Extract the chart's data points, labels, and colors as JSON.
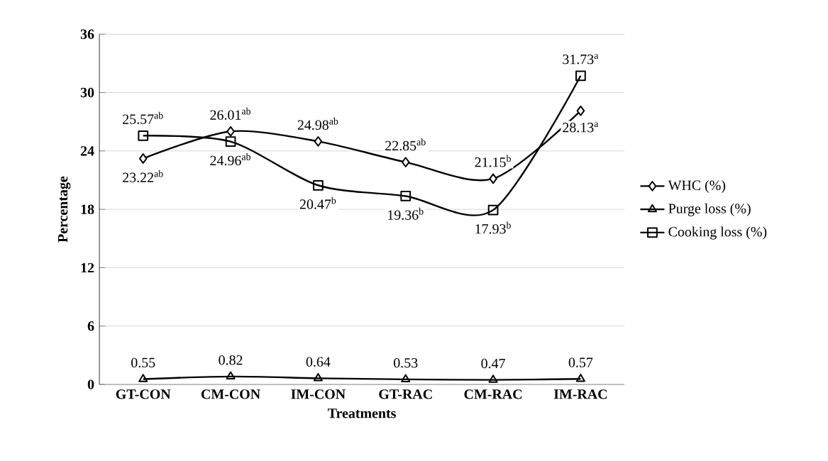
{
  "chart_data": {
    "type": "line",
    "xlabel": "Treatments",
    "ylabel": "Percentage",
    "categories": [
      "GT-CON",
      "CM-CON",
      "IM-CON",
      "GT-RAC",
      "CM-RAC",
      "IM-RAC"
    ],
    "series": [
      {
        "name": "WHC (%)",
        "color": "#000000",
        "marker": "diamond",
        "values": [
          23.22,
          26.01,
          24.98,
          22.85,
          21.15,
          28.13
        ],
        "value_labels": [
          "23.22$^{ab}$",
          "26.01$^{ab}$",
          "24.98$^{ab}$",
          "22.85$^{ab}$",
          "21.15$^{b}$",
          "28.13$^{a}$"
        ]
      },
      {
        "name": "Purge loss (%)",
        "color": "#000000",
        "marker": "triangle",
        "values": [
          0.55,
          0.82,
          0.64,
          0.53,
          0.47,
          0.57
        ],
        "value_labels": [
          "0.55",
          "0.82",
          "0.64",
          "0.53",
          "0.47",
          "0.57"
        ]
      },
      {
        "name": "Cooking loss (%)",
        "color": "#000000",
        "marker": "square",
        "values": [
          25.57,
          24.96,
          20.47,
          19.36,
          17.93,
          31.73
        ],
        "value_labels": [
          "25.57$^{ab}$",
          "24.96$^{ab}$",
          "20.47$^{b}$",
          "19.36$^{b}$",
          "17.93$^{b}$",
          "31.73$^{a}$"
        ]
      }
    ],
    "ylim": [
      0,
      36
    ],
    "yticks": [
      0,
      6,
      12,
      18,
      24,
      30,
      36
    ],
    "grid": "y",
    "legend": "right"
  }
}
